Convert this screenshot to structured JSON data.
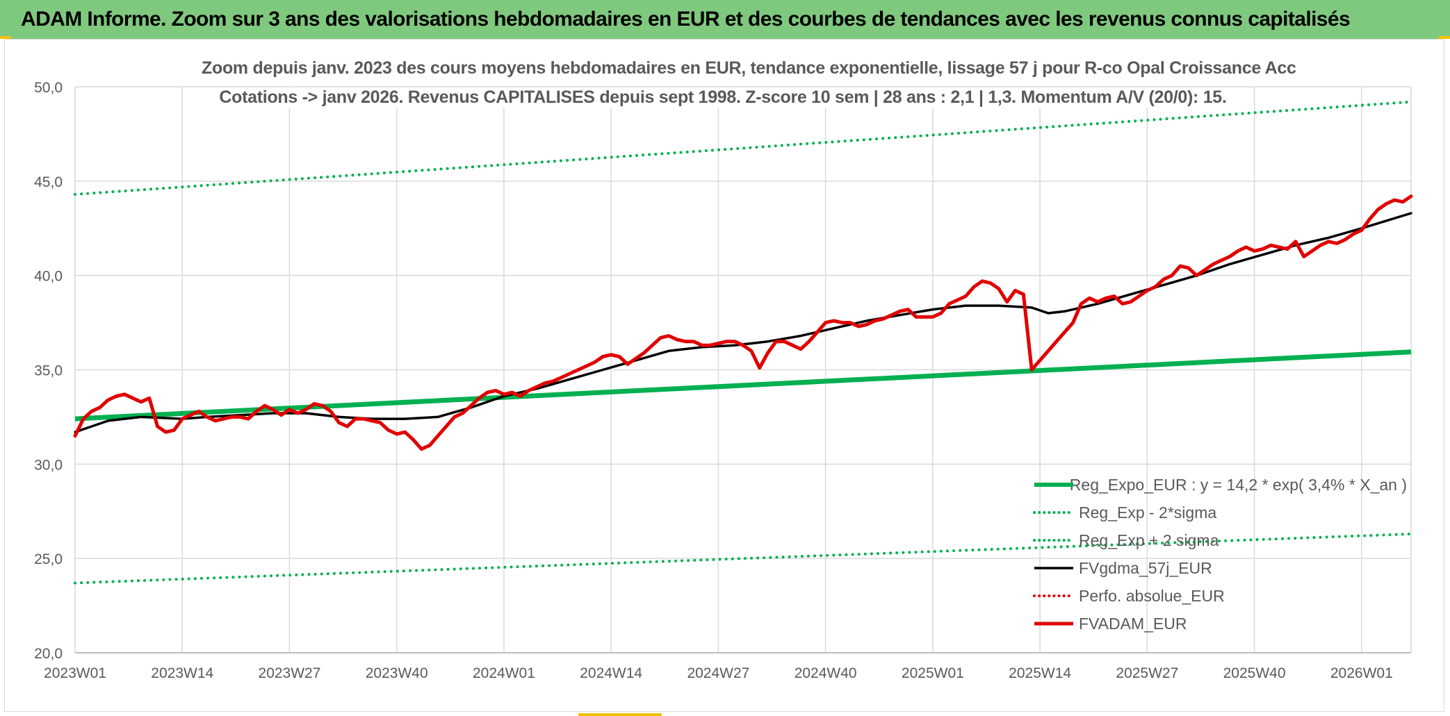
{
  "header": {
    "title": "ADAM Informe. Zoom sur 3 ans des valorisations hebdomadaires en EUR et des courbes de tendances avec les revenus connus capitalisés"
  },
  "colors": {
    "title_bg": "#7fc97f",
    "reg_expo": "#00b050",
    "band": "#00b050",
    "gdma": "#000000",
    "fvadam": "#e00000",
    "perfo": "#e00000",
    "grid": "#d9d9d9",
    "axis_text": "#595959"
  },
  "chart_data": {
    "type": "line",
    "title_line1": "Zoom depuis janv. 2023 des cours moyens hebdomadaires en EUR, tendance exponentielle, lissage 57 j pour R-co Opal Croissance Acc",
    "title_line2": "Cotations -> janv 2026. Revenus CAPITALISES depuis sept 1998. Z-score 10 sem | 28 ans : 2,1 | 1,3. Momentum A/V (20/0): 15.",
    "x_tick_labels": [
      "2023W01",
      "2023W14",
      "2023W27",
      "2023W40",
      "2024W01",
      "2024W14",
      "2024W27",
      "2024W40",
      "2025W01",
      "2025W14",
      "2025W27",
      "2025W40",
      "2026W01"
    ],
    "y_tick_labels": [
      "20,0",
      "25,0",
      "30,0",
      "35,0",
      "40,0",
      "45,0",
      "50,0"
    ],
    "ylim": [
      20,
      50
    ],
    "xlim": [
      0,
      162
    ],
    "legend_position": "bottom-right",
    "series": [
      {
        "name": "Reg_Expo_EUR : y = 14,2 * exp( 3,4% *  X_an )",
        "style": "solid-thick",
        "color": "#00b050",
        "x": [
          0,
          162
        ],
        "values": [
          32.4,
          35.95
        ]
      },
      {
        "name": "Reg_Exp - 2*sigma",
        "style": "dotted",
        "color": "#00b050",
        "x": [
          0,
          162
        ],
        "values": [
          23.7,
          26.3
        ]
      },
      {
        "name": "Reg_Exp + 2 sigma",
        "style": "dotted",
        "color": "#00b050",
        "x": [
          0,
          162
        ],
        "values": [
          44.3,
          49.2
        ]
      },
      {
        "name": "FVgdma_57j_EUR",
        "style": "solid",
        "color": "#000000",
        "x": [
          0,
          4,
          8,
          13,
          16,
          20,
          24,
          28,
          32,
          36,
          40,
          44,
          48,
          52,
          56,
          60,
          64,
          68,
          72,
          76,
          80,
          84,
          88,
          92,
          96,
          100,
          104,
          108,
          112,
          116,
          118,
          120,
          124,
          128,
          132,
          136,
          140,
          144,
          148,
          152,
          156,
          162
        ],
        "values": [
          31.7,
          32.3,
          32.5,
          32.4,
          32.5,
          32.6,
          32.7,
          32.7,
          32.5,
          32.4,
          32.4,
          32.5,
          33.0,
          33.6,
          34.0,
          34.5,
          35.0,
          35.5,
          36.0,
          36.2,
          36.3,
          36.5,
          36.8,
          37.2,
          37.6,
          37.9,
          38.2,
          38.4,
          38.4,
          38.3,
          38.0,
          38.1,
          38.5,
          39.0,
          39.5,
          40.0,
          40.6,
          41.1,
          41.6,
          42.0,
          42.5,
          43.3
        ]
      },
      {
        "name": "Perfo. absolue_EUR",
        "style": "dotted",
        "color": "#e00000",
        "x": [],
        "values": []
      },
      {
        "name": "FVADAM_EUR",
        "style": "solid-thick",
        "color": "#e00000",
        "x": [
          0,
          1,
          2,
          3,
          4,
          5,
          6,
          7,
          8,
          9,
          10,
          11,
          12,
          13,
          14,
          15,
          16,
          17,
          18,
          19,
          20,
          21,
          22,
          23,
          24,
          25,
          26,
          27,
          28,
          29,
          30,
          31,
          32,
          33,
          34,
          35,
          36,
          37,
          38,
          39,
          40,
          41,
          42,
          43,
          44,
          45,
          46,
          47,
          48,
          49,
          50,
          51,
          52,
          53,
          54,
          55,
          56,
          57,
          58,
          59,
          60,
          61,
          62,
          63,
          64,
          65,
          66,
          67,
          68,
          69,
          70,
          71,
          72,
          73,
          74,
          75,
          76,
          77,
          78,
          79,
          80,
          81,
          82,
          83,
          84,
          85,
          86,
          87,
          88,
          89,
          90,
          91,
          92,
          93,
          94,
          95,
          96,
          97,
          98,
          99,
          100,
          101,
          102,
          103,
          104,
          105,
          106,
          107,
          108,
          109,
          110,
          111,
          112,
          113,
          114,
          115,
          116,
          117,
          118,
          119,
          120,
          121,
          122,
          123,
          124,
          125,
          126,
          127,
          128,
          129,
          130,
          131,
          132,
          133,
          134,
          135,
          136,
          137,
          138,
          139,
          140,
          141,
          142,
          143,
          144,
          145,
          146,
          147,
          148,
          149,
          150,
          151,
          152,
          153,
          154,
          155,
          156,
          157,
          158,
          159,
          160,
          161,
          162
        ],
        "values": [
          31.5,
          32.4,
          32.8,
          33.0,
          33.4,
          33.6,
          33.7,
          33.5,
          33.3,
          33.5,
          32.0,
          31.7,
          31.8,
          32.4,
          32.6,
          32.8,
          32.5,
          32.3,
          32.4,
          32.5,
          32.5,
          32.4,
          32.8,
          33.1,
          32.9,
          32.6,
          32.9,
          32.7,
          32.9,
          33.2,
          33.1,
          32.8,
          32.2,
          32.0,
          32.4,
          32.4,
          32.3,
          32.2,
          31.8,
          31.6,
          31.7,
          31.3,
          30.8,
          31.0,
          31.5,
          32.0,
          32.5,
          32.7,
          33.1,
          33.5,
          33.8,
          33.9,
          33.7,
          33.8,
          33.6,
          33.9,
          34.1,
          34.3,
          34.4,
          34.6,
          34.8,
          35.0,
          35.2,
          35.4,
          35.7,
          35.8,
          35.7,
          35.3,
          35.6,
          35.9,
          36.3,
          36.7,
          36.8,
          36.6,
          36.5,
          36.5,
          36.3,
          36.3,
          36.4,
          36.5,
          36.5,
          36.3,
          36.0,
          35.1,
          35.9,
          36.5,
          36.5,
          36.3,
          36.1,
          36.5,
          37.0,
          37.5,
          37.6,
          37.5,
          37.5,
          37.3,
          37.4,
          37.6,
          37.7,
          37.9,
          38.1,
          38.2,
          37.8,
          37.8,
          37.8,
          38.0,
          38.5,
          38.7,
          38.9,
          39.4,
          39.7,
          39.6,
          39.3,
          38.6,
          39.2,
          39.0,
          35.0,
          35.5,
          36.0,
          36.5,
          37.0,
          37.5,
          38.5,
          38.8,
          38.6,
          38.8,
          38.9,
          38.5,
          38.6,
          38.9,
          39.2,
          39.4,
          39.8,
          40.0,
          40.5,
          40.4,
          40.0,
          40.3,
          40.6,
          40.8,
          41.0,
          41.3,
          41.5,
          41.3,
          41.4,
          41.6,
          41.5,
          41.4,
          41.8,
          41.0,
          41.3,
          41.6,
          41.8,
          41.7,
          41.9,
          42.2,
          42.4,
          43.0,
          43.5,
          43.8,
          44.0,
          43.9,
          44.2
        ]
      }
    ]
  }
}
